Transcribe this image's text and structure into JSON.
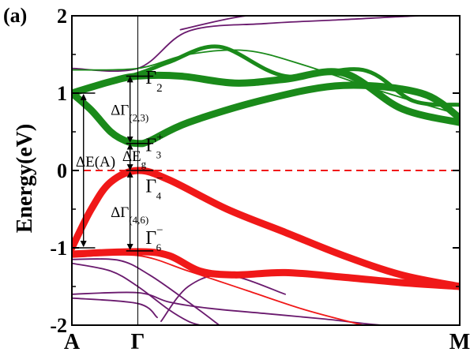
{
  "chart_data": {
    "type": "line",
    "panel_label": "(a)",
    "ylabel": "Energy(eV)",
    "xlabel": "",
    "ylim": [
      -2,
      2
    ],
    "yticks": [
      "-2",
      "-1",
      "0",
      "1",
      "2"
    ],
    "x_ticks": [
      "A",
      "Γ",
      "M"
    ],
    "fermi_level": 0,
    "colors": {
      "conduction": "#1a8a1a",
      "valence": "#f01818",
      "background_bands": "#6a1a6e",
      "fermi_line": "#f01818",
      "frame": "#000000"
    },
    "series": [
      {
        "role": "conduction",
        "weight": "thick",
        "x": [
          0,
          0.05,
          0.1,
          0.14,
          0.17,
          0.2,
          0.3,
          0.5,
          0.7,
          0.9,
          1.0
        ],
        "y": [
          1.0,
          0.78,
          0.5,
          0.38,
          0.35,
          0.38,
          0.62,
          0.92,
          1.1,
          1.0,
          0.68
        ]
      },
      {
        "role": "conduction",
        "weight": "thick",
        "x": [
          0,
          0.1,
          0.17,
          0.28,
          0.42,
          0.55,
          0.7,
          0.85,
          1.0
        ],
        "y": [
          1.0,
          1.15,
          1.22,
          1.22,
          1.13,
          1.18,
          1.26,
          0.8,
          0.62
        ]
      },
      {
        "role": "conduction",
        "weight": "medium",
        "x": [
          0,
          0.17,
          0.25,
          0.38,
          0.55,
          0.75,
          0.88,
          1.0
        ],
        "y": [
          1.0,
          1.25,
          1.4,
          1.6,
          1.22,
          1.3,
          0.9,
          0.85
        ]
      },
      {
        "role": "conduction",
        "weight": "thin",
        "x": [
          0,
          0.17,
          0.3,
          0.45,
          0.6,
          0.8,
          1.0
        ],
        "y": [
          1.3,
          1.32,
          1.5,
          1.55,
          1.36,
          1.02,
          0.72
        ]
      },
      {
        "role": "valence",
        "weight": "thick",
        "x": [
          0,
          0.05,
          0.1,
          0.17,
          0.25,
          0.4,
          0.55,
          0.7,
          0.85,
          1.0
        ],
        "y": [
          -1.0,
          -0.5,
          -0.15,
          0.0,
          -0.12,
          -0.5,
          -0.8,
          -1.1,
          -1.35,
          -1.5
        ]
      },
      {
        "role": "valence",
        "weight": "thick",
        "x": [
          0,
          0.17,
          0.25,
          0.33,
          0.42,
          0.55,
          0.7,
          0.85,
          1.0
        ],
        "y": [
          -1.08,
          -1.05,
          -1.1,
          -1.3,
          -1.35,
          -1.32,
          -1.38,
          -1.45,
          -1.5
        ]
      },
      {
        "role": "valence",
        "weight": "thin",
        "x": [
          0,
          0.17,
          0.3,
          0.45,
          0.6,
          0.75
        ],
        "y": [
          -1.12,
          -1.1,
          -1.3,
          -1.55,
          -1.8,
          -2.0
        ]
      },
      {
        "role": "background",
        "weight": "thin",
        "x": [
          0,
          0.17,
          0.3,
          0.5,
          0.7,
          0.9,
          1.0
        ],
        "y": [
          1.32,
          1.32,
          1.8,
          1.9,
          1.95,
          2.0,
          2.0
        ]
      },
      {
        "role": "background",
        "weight": "thin",
        "x": [
          0.28,
          0.45,
          0.6
        ],
        "y": [
          1.82,
          2.0,
          2.0
        ]
      },
      {
        "role": "background",
        "weight": "thin",
        "x": [
          0,
          0.17,
          0.25,
          0.35,
          0.5,
          0.65,
          0.8,
          0.9
        ],
        "y": [
          -1.6,
          -1.58,
          -1.7,
          -1.78,
          -1.85,
          -1.92,
          -2.0,
          -2.0
        ]
      },
      {
        "role": "background",
        "weight": "thin",
        "x": [
          0,
          0.12,
          0.2,
          0.3,
          0.38
        ],
        "y": [
          -1.15,
          -1.16,
          -1.35,
          -1.7,
          -2.0
        ]
      },
      {
        "role": "background",
        "weight": "thin",
        "x": [
          0,
          0.1,
          0.17,
          0.25,
          0.3,
          0.33
        ],
        "y": [
          -1.2,
          -1.3,
          -1.5,
          -1.8,
          -1.95,
          -2.0
        ]
      },
      {
        "role": "background",
        "weight": "thin",
        "x": [
          0,
          0.17,
          0.22
        ],
        "y": [
          -1.65,
          -1.72,
          -1.9
        ]
      },
      {
        "role": "background",
        "weight": "thin",
        "x": [
          0.23,
          0.3,
          0.4,
          0.55
        ],
        "y": [
          -1.95,
          -1.5,
          -1.35,
          -1.6
        ]
      }
    ],
    "annotations": [
      {
        "base": "Γ",
        "sub": "2",
        "sup": "",
        "x": 0.19,
        "y": 1.12
      },
      {
        "base": "Γ",
        "sub": "3",
        "sup": "+",
        "x": 0.19,
        "y": 0.25
      },
      {
        "base": "Γ",
        "sub": "4",
        "sup": "−",
        "x": 0.19,
        "y": -0.28
      },
      {
        "base": "Γ",
        "sub": "6",
        "sup": "−",
        "x": 0.19,
        "y": -0.95
      },
      {
        "base": "ΔΓ",
        "sub": "(2,3)",
        "sup": "",
        "x": 0.1,
        "y": 0.72
      },
      {
        "base": "ΔΓ",
        "sub": "(4,6)",
        "sup": "",
        "x": 0.1,
        "y": -0.6
      },
      {
        "base": "ΔE",
        "sub": "g",
        "sup": "",
        "x": 0.13,
        "y": 0.12
      },
      {
        "base": "ΔE(A)",
        "sub": "",
        "sup": "",
        "x": 0.01,
        "y": 0.05
      }
    ]
  }
}
